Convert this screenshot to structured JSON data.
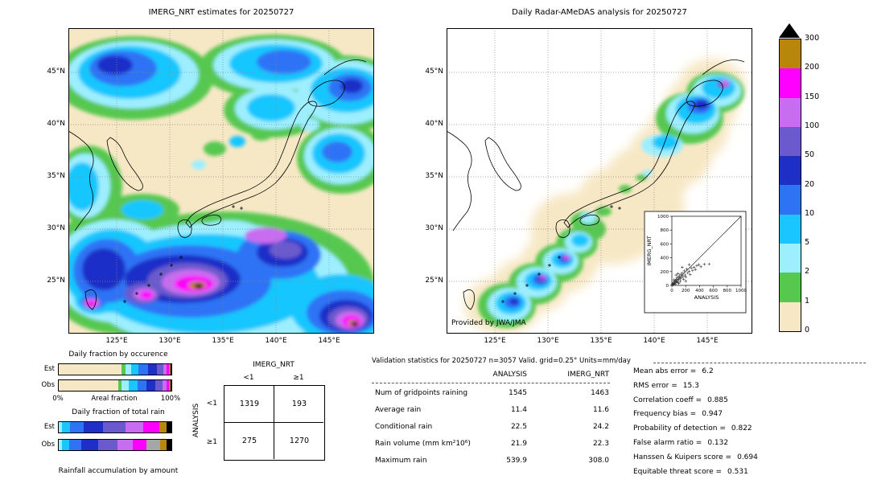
{
  "figure": {
    "left_map": {
      "title": "IMERG_NRT estimates for 20250727",
      "x_ticks": [
        "125°E",
        "130°E",
        "135°E",
        "140°E",
        "145°E"
      ],
      "y_ticks": [
        "45°N",
        "40°N",
        "35°N",
        "30°N",
        "25°N"
      ]
    },
    "right_map": {
      "title": "Daily Radar-AMeDAS analysis for 20250727",
      "credit": "Provided by JWA/JMA",
      "x_ticks": [
        "125°E",
        "130°E",
        "135°E",
        "140°E",
        "145°E"
      ],
      "y_ticks": [
        "45°N",
        "40°N",
        "35°N",
        "30°N",
        "25°N"
      ],
      "inset": {
        "xlabel": "ANALYSIS",
        "ylabel": "IMERG_NRT",
        "x_ticks": [
          "0",
          "200",
          "400",
          "600",
          "800",
          "1000"
        ],
        "y_ticks": [
          "0",
          "200",
          "400",
          "600",
          "800",
          "1000"
        ]
      }
    },
    "colorbar": {
      "tick_labels": [
        "300",
        "200",
        "150",
        "100",
        "50",
        "20",
        "10",
        "5",
        "2",
        "1",
        "0"
      ],
      "segment_colors_top_to_bottom": [
        "#b8860b",
        "#ff00ff",
        "#c86df0",
        "#6a5acd",
        "#1e2fc8",
        "#2f73f5",
        "#19c6ff",
        "#9defff",
        "#57c84f",
        "#f7e8c5"
      ],
      "over_color": "#000000",
      "units": "mm/day"
    },
    "fractions": {
      "occurrence_title": "Daily fraction by occurence",
      "total_title": "Daily fraction of total rain",
      "bottom_label": "Rainfall accumulation by amount",
      "axis_left": "0%",
      "axis_label": "Areal fraction",
      "axis_right": "100%",
      "row_labels": [
        "Est",
        "Obs"
      ],
      "occurrence": {
        "est": [
          {
            "color": "#f7e8c5",
            "pct": 56
          },
          {
            "color": "#57c84f",
            "pct": 3
          },
          {
            "color": "#9defff",
            "pct": 5
          },
          {
            "color": "#19c6ff",
            "pct": 7
          },
          {
            "color": "#2f73f5",
            "pct": 8
          },
          {
            "color": "#1e2fc8",
            "pct": 8
          },
          {
            "color": "#6a5acd",
            "pct": 6
          },
          {
            "color": "#c86df0",
            "pct": 3
          },
          {
            "color": "#ff00ff",
            "pct": 2
          },
          {
            "color": "#b8860b",
            "pct": 1
          },
          {
            "color": "#000000",
            "pct": 1
          }
        ],
        "obs": [
          {
            "color": "#f7e8c5",
            "pct": 53
          },
          {
            "color": "#57c84f",
            "pct": 3
          },
          {
            "color": "#9defff",
            "pct": 6
          },
          {
            "color": "#19c6ff",
            "pct": 8
          },
          {
            "color": "#2f73f5",
            "pct": 8
          },
          {
            "color": "#1e2fc8",
            "pct": 8
          },
          {
            "color": "#6a5acd",
            "pct": 6
          },
          {
            "color": "#c86df0",
            "pct": 4
          },
          {
            "color": "#ff00ff",
            "pct": 2
          },
          {
            "color": "#b8860b",
            "pct": 1
          },
          {
            "color": "#000000",
            "pct": 1
          }
        ]
      },
      "total": {
        "est": [
          {
            "color": "#9defff",
            "pct": 3
          },
          {
            "color": "#19c6ff",
            "pct": 7
          },
          {
            "color": "#2f73f5",
            "pct": 12
          },
          {
            "color": "#1e2fc8",
            "pct": 17
          },
          {
            "color": "#6a5acd",
            "pct": 20
          },
          {
            "color": "#c86df0",
            "pct": 16
          },
          {
            "color": "#ff00ff",
            "pct": 14
          },
          {
            "color": "#b8860b",
            "pct": 7
          },
          {
            "color": "#000000",
            "pct": 4
          }
        ],
        "obs": [
          {
            "color": "#9defff",
            "pct": 3
          },
          {
            "color": "#19c6ff",
            "pct": 6
          },
          {
            "color": "#2f73f5",
            "pct": 11
          },
          {
            "color": "#1e2fc8",
            "pct": 15
          },
          {
            "color": "#6a5acd",
            "pct": 17
          },
          {
            "color": "#c86df0",
            "pct": 14
          },
          {
            "color": "#ff00ff",
            "pct": 12
          },
          {
            "color": "#a6a6a6",
            "pct": 12
          },
          {
            "color": "#b8860b",
            "pct": 6
          },
          {
            "color": "#000000",
            "pct": 4
          }
        ]
      }
    },
    "contingency": {
      "col_title": "IMERG_NRT",
      "row_title": "ANALYSIS",
      "col_labels": [
        "<1",
        "≥1"
      ],
      "row_labels": [
        "<1",
        "≥1"
      ],
      "cells": [
        [
          "1319",
          "193"
        ],
        [
          "275",
          "1270"
        ]
      ]
    },
    "validation": {
      "title": "Validation statistics for 20250727  n=3057 Valid. grid=0.25° Units=mm/day",
      "col_headers": [
        "ANALYSIS",
        "IMERG_NRT"
      ],
      "rows": [
        {
          "label": "Num of gridpoints raining",
          "analysis": "1545",
          "imerg": "1463"
        },
        {
          "label": "Average rain",
          "analysis": "11.4",
          "imerg": "11.6"
        },
        {
          "label": "Conditional rain",
          "analysis": "22.5",
          "imerg": "24.2"
        },
        {
          "label": "Rain volume (mm km²10⁶)",
          "analysis": "21.9",
          "imerg": "22.3"
        },
        {
          "label": "Maximum rain",
          "analysis": "539.9",
          "imerg": "308.0"
        }
      ],
      "stats": [
        {
          "label": "Mean abs error =",
          "value": "6.2"
        },
        {
          "label": "RMS error =",
          "value": "15.3"
        },
        {
          "label": "Correlation coeff =",
          "value": "0.885"
        },
        {
          "label": "Frequency bias =",
          "value": "0.947"
        },
        {
          "label": "Probability of detection =",
          "value": "0.822"
        },
        {
          "label": "False alarm ratio =",
          "value": "0.132"
        },
        {
          "label": "Hanssen & Kuipers score =",
          "value": "0.694"
        },
        {
          "label": "Equitable threat score =",
          "value": "0.531"
        }
      ]
    }
  },
  "chart_data": [
    {
      "type": "heatmap",
      "title": "IMERG_NRT estimates for 20250727",
      "x_ticks": [
        "125°E",
        "130°E",
        "135°E",
        "140°E",
        "145°E"
      ],
      "y_ticks": [
        "45°N",
        "40°N",
        "35°N",
        "30°N",
        "25°N"
      ],
      "units": "mm/day",
      "levels": [
        0,
        1,
        2,
        5,
        10,
        20,
        50,
        100,
        150,
        200,
        300
      ],
      "note": "daily precipitation field over Japan region; heavy rain south of 30N and over northern Japan"
    },
    {
      "type": "heatmap",
      "title": "Daily Radar-AMeDAS analysis for 20250727",
      "x_ticks": [
        "125°E",
        "130°E",
        "135°E",
        "140°E",
        "145°E"
      ],
      "y_ticks": [
        "45°N",
        "40°N",
        "35°N",
        "30°N",
        "25°N"
      ],
      "units": "mm/day",
      "levels": [
        0,
        1,
        2,
        5,
        10,
        20,
        50,
        100,
        150,
        200,
        300
      ],
      "credit": "Provided by JWA/JMA",
      "note": "radar coverage swath along Japanese archipelago; heavy rain band over southwest islands"
    },
    {
      "type": "scatter",
      "xlabel": "ANALYSIS",
      "ylabel": "IMERG_NRT",
      "xlim": [
        0,
        1000
      ],
      "ylim": [
        0,
        1000
      ],
      "tick_step": 200,
      "ref_line": "1:1 diagonal",
      "points": [
        [
          5,
          10
        ],
        [
          10,
          22
        ],
        [
          15,
          8
        ],
        [
          20,
          30
        ],
        [
          25,
          15
        ],
        [
          30,
          45
        ],
        [
          35,
          25
        ],
        [
          40,
          60
        ],
        [
          45,
          35
        ],
        [
          50,
          20
        ],
        [
          55,
          70
        ],
        [
          60,
          48
        ],
        [
          65,
          90
        ],
        [
          70,
          55
        ],
        [
          75,
          110
        ],
        [
          80,
          70
        ],
        [
          90,
          40
        ],
        [
          95,
          120
        ],
        [
          100,
          85
        ],
        [
          110,
          140
        ],
        [
          120,
          95
        ],
        [
          130,
          160
        ],
        [
          140,
          110
        ],
        [
          150,
          180
        ],
        [
          160,
          130
        ],
        [
          170,
          90
        ],
        [
          180,
          210
        ],
        [
          190,
          150
        ],
        [
          200,
          120
        ],
        [
          215,
          235
        ],
        [
          230,
          180
        ],
        [
          250,
          205
        ],
        [
          265,
          155
        ],
        [
          280,
          250
        ],
        [
          300,
          215
        ],
        [
          320,
          260
        ],
        [
          340,
          230
        ],
        [
          360,
          285
        ],
        [
          390,
          300
        ],
        [
          420,
          270
        ],
        [
          470,
          305
        ],
        [
          540,
          308
        ],
        [
          60,
          150
        ],
        [
          30,
          80
        ],
        [
          90,
          170
        ],
        [
          120,
          60
        ],
        [
          200,
          60
        ],
        [
          250,
          300
        ],
        [
          150,
          260
        ],
        [
          100,
          30
        ]
      ]
    },
    {
      "type": "table",
      "name": "contingency",
      "columns": [
        "IMERG_NRT <1",
        "IMERG_NRT ≥1"
      ],
      "rows": [
        {
          "label": "ANALYSIS <1",
          "values": [
            1319,
            193
          ]
        },
        {
          "label": "ANALYSIS ≥1",
          "values": [
            275,
            1270
          ]
        }
      ]
    },
    {
      "type": "table",
      "name": "validation_statistics",
      "title": "Validation statistics for 20250727  n=3057 Valid. grid=0.25° Units=mm/day",
      "columns": [
        "ANALYSIS",
        "IMERG_NRT"
      ],
      "rows": [
        [
          "Num of gridpoints raining",
          1545,
          1463
        ],
        [
          "Average rain",
          11.4,
          11.6
        ],
        [
          "Conditional rain",
          22.5,
          24.2
        ],
        [
          "Rain volume (mm km²10⁶)",
          21.9,
          22.3
        ],
        [
          "Maximum rain",
          539.9,
          308.0
        ]
      ],
      "scores": {
        "Mean abs error": 6.2,
        "RMS error": 15.3,
        "Correlation coeff": 0.885,
        "Frequency bias": 0.947,
        "Probability of detection": 0.822,
        "False alarm ratio": 0.132,
        "Hanssen & Kuipers score": 0.694,
        "Equitable threat score": 0.531
      }
    }
  ]
}
